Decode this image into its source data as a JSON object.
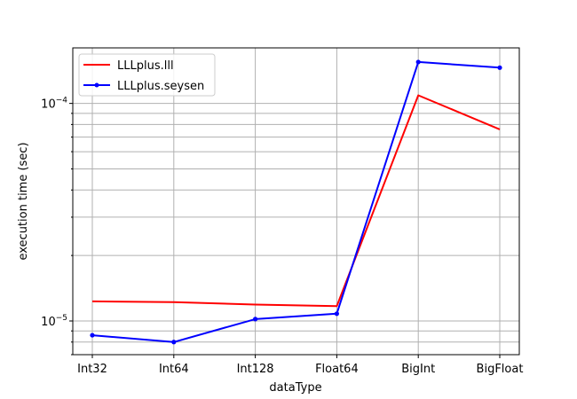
{
  "chart_data": {
    "type": "line",
    "categories": [
      "Int32",
      "Int64",
      "Int128",
      "Float64",
      "BigInt",
      "BigFloat"
    ],
    "xlabel": "dataType",
    "ylabel": "execution time (sec)",
    "yscale": "log",
    "ylim": [
      7e-06,
      0.00018
    ],
    "grid": true,
    "legend": "top-left",
    "y_major_tick_labels": [
      "10",
      "10"
    ],
    "y_major_tick_exponents": [
      "−5",
      "−4"
    ],
    "series": [
      {
        "name": "LLLplus.lll",
        "color": "#ff0000",
        "marker": "none",
        "values": [
          1.23e-05,
          1.22e-05,
          1.19e-05,
          1.17e-05,
          0.000109,
          7.6e-05
        ]
      },
      {
        "name": "LLLplus.seysen",
        "color": "#0000ff",
        "marker": "dot",
        "values": [
          8.6e-06,
          8e-06,
          1.02e-05,
          1.08e-05,
          0.000155,
          0.000146
        ]
      }
    ]
  }
}
